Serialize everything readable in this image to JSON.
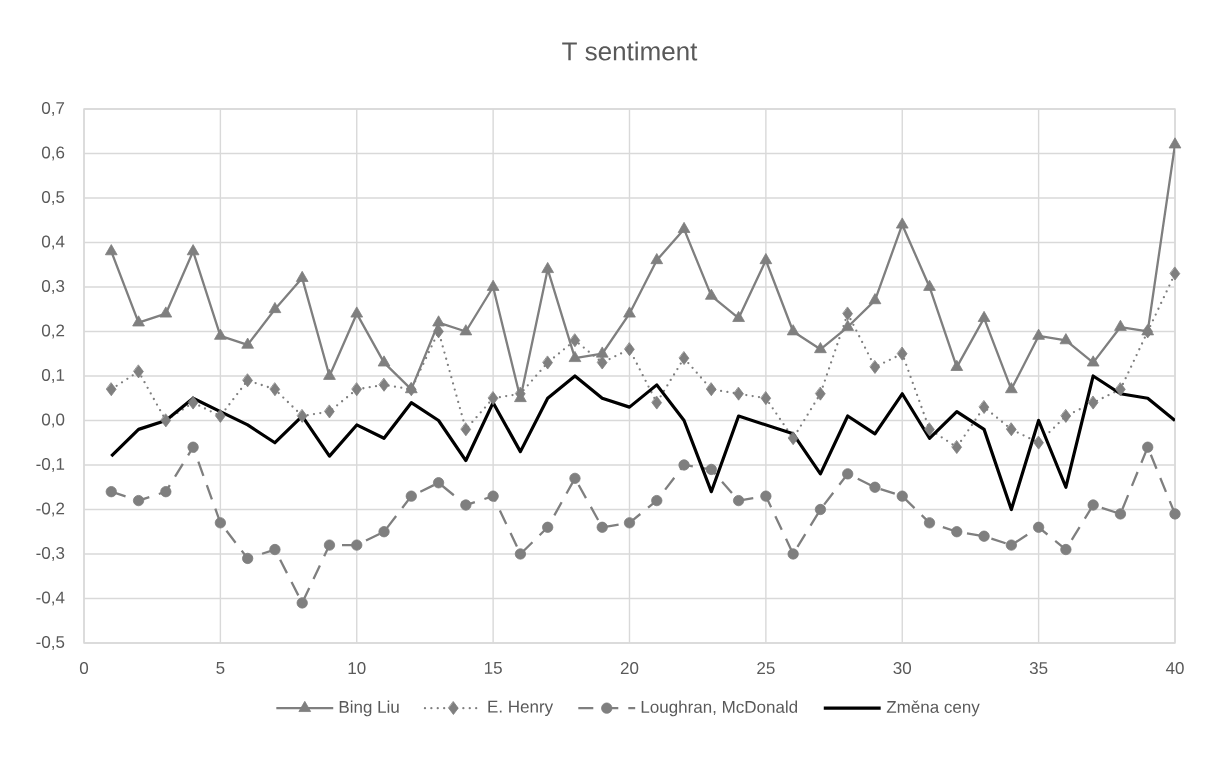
{
  "chart_data": {
    "type": "line",
    "title": "T sentiment",
    "x": [
      1,
      2,
      3,
      4,
      5,
      6,
      7,
      8,
      9,
      10,
      11,
      12,
      13,
      14,
      15,
      16,
      17,
      18,
      19,
      20,
      21,
      22,
      23,
      24,
      25,
      26,
      27,
      28,
      29,
      30,
      31,
      32,
      33,
      34,
      35,
      36,
      37,
      38,
      39,
      40
    ],
    "series": [
      {
        "name": "Bing Liu",
        "color": "#7f7f7f",
        "marker": "triangle",
        "line_style": "solid",
        "values": [
          0.38,
          0.22,
          0.24,
          0.38,
          0.19,
          0.17,
          0.25,
          0.32,
          0.1,
          0.24,
          0.13,
          0.07,
          0.22,
          0.2,
          0.3,
          0.05,
          0.34,
          0.14,
          0.15,
          0.24,
          0.36,
          0.43,
          0.28,
          0.23,
          0.36,
          0.2,
          0.16,
          0.21,
          0.27,
          0.44,
          0.3,
          0.12,
          0.23,
          0.07,
          0.19,
          0.18,
          0.13,
          0.21,
          0.2,
          0.62
        ]
      },
      {
        "name": "E. Henry",
        "color": "#7f7f7f",
        "marker": "diamond",
        "line_style": "dotted",
        "values": [
          0.07,
          0.11,
          0.0,
          0.04,
          0.01,
          0.09,
          0.07,
          0.01,
          0.02,
          0.07,
          0.08,
          0.07,
          0.2,
          -0.02,
          0.05,
          0.06,
          0.13,
          0.18,
          0.13,
          0.16,
          0.04,
          0.14,
          0.07,
          0.06,
          0.05,
          -0.04,
          0.06,
          0.24,
          0.12,
          0.15,
          -0.02,
          -0.06,
          0.03,
          -0.02,
          -0.05,
          0.01,
          0.04,
          0.07,
          0.2,
          0.33
        ]
      },
      {
        "name": "Loughran, McDonald",
        "color": "#7f7f7f",
        "marker": "circle",
        "line_style": "dashed",
        "values": [
          -0.16,
          -0.18,
          -0.16,
          -0.06,
          -0.23,
          -0.31,
          -0.29,
          -0.41,
          -0.28,
          -0.28,
          -0.25,
          -0.17,
          -0.14,
          -0.19,
          -0.17,
          -0.3,
          -0.24,
          -0.13,
          -0.24,
          -0.23,
          -0.18,
          -0.1,
          -0.11,
          -0.18,
          -0.17,
          -0.3,
          -0.2,
          -0.12,
          -0.15,
          -0.17,
          -0.23,
          -0.25,
          -0.26,
          -0.28,
          -0.24,
          -0.29,
          -0.19,
          -0.21,
          -0.06,
          -0.21
        ]
      },
      {
        "name": "Změna ceny",
        "color": "#000000",
        "marker": "none",
        "line_style": "solid",
        "values": [
          -0.08,
          -0.02,
          0.0,
          0.05,
          0.02,
          -0.01,
          -0.05,
          0.01,
          -0.08,
          -0.01,
          -0.04,
          0.04,
          0.0,
          -0.09,
          0.04,
          -0.07,
          0.05,
          0.1,
          0.05,
          0.03,
          0.08,
          0.0,
          -0.16,
          0.01,
          -0.01,
          -0.03,
          -0.12,
          0.01,
          -0.03,
          0.06,
          -0.04,
          0.02,
          -0.02,
          -0.2,
          0.0,
          -0.15,
          0.1,
          0.06,
          0.05,
          0.0
        ]
      }
    ],
    "xlim": [
      0,
      40
    ],
    "xticks": [
      0,
      5,
      10,
      15,
      20,
      25,
      30,
      35,
      40
    ],
    "ylim": [
      -0.5,
      0.7
    ],
    "yticks": [
      {
        "value": -0.5,
        "label": "-0,5"
      },
      {
        "value": -0.4,
        "label": "-0,4"
      },
      {
        "value": -0.3,
        "label": "-0,3"
      },
      {
        "value": -0.2,
        "label": "-0,2"
      },
      {
        "value": -0.1,
        "label": "-0,1"
      },
      {
        "value": 0,
        "label": "0,0"
      },
      {
        "value": 0.1,
        "label": "0,1"
      },
      {
        "value": 0.2,
        "label": "0,2"
      },
      {
        "value": 0.3,
        "label": "0,3"
      },
      {
        "value": 0.4,
        "label": "0,4"
      },
      {
        "value": 0.5,
        "label": "0,5"
      },
      {
        "value": 0.6,
        "label": "0,6"
      },
      {
        "value": 0.7,
        "label": "0,7"
      }
    ],
    "grid": true,
    "legend": "bottom"
  }
}
